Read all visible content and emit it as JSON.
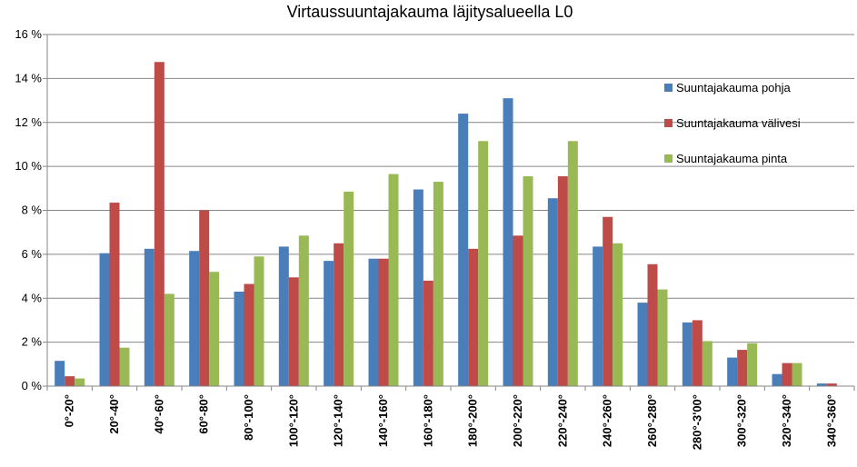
{
  "chart_data": {
    "type": "bar",
    "title": "Virtaussuuntajakauma läjitysalueella L0",
    "xlabel": "",
    "ylabel": "",
    "ylim": [
      0,
      16
    ],
    "yticks": [
      "0 %",
      "2 %",
      "4 %",
      "6 %",
      "8 %",
      "10 %",
      "12 %",
      "14 %",
      "16 %"
    ],
    "grid": true,
    "legend_position": "right",
    "categories": [
      "0°-20°",
      "20°-40°",
      "40°-60°",
      "60°-80°",
      "80°-100°",
      "100°-120°",
      "120°-140°",
      "140°-160°",
      "160°-180°",
      "180°-200°",
      "200°-220°",
      "220°-240°",
      "240°-260°",
      "260°-280°",
      "280°-3'00°",
      "300°-320°",
      "320°-340°",
      "340°-360°"
    ],
    "series": [
      {
        "name": "Suuntajakauma pohja",
        "color": "#4A7EBB",
        "values": [
          1.15,
          6.05,
          6.25,
          6.15,
          4.3,
          6.35,
          5.7,
          5.8,
          8.95,
          12.4,
          13.1,
          8.55,
          6.35,
          3.8,
          2.9,
          1.3,
          0.55,
          0.12
        ]
      },
      {
        "name": "Suuntajakauma välivesi",
        "color": "#BE4B48",
        "values": [
          0.45,
          8.35,
          14.75,
          8.0,
          4.65,
          4.95,
          6.5,
          5.8,
          4.8,
          6.25,
          6.85,
          9.55,
          7.7,
          5.55,
          3.0,
          1.65,
          1.05,
          0.12
        ]
      },
      {
        "name": "Suuntajakauma pinta",
        "color": "#98B954",
        "values": [
          0.35,
          1.75,
          4.2,
          5.2,
          5.9,
          6.85,
          8.85,
          9.65,
          9.3,
          11.15,
          9.55,
          11.15,
          6.5,
          4.4,
          2.05,
          1.95,
          1.05,
          null
        ]
      }
    ]
  }
}
